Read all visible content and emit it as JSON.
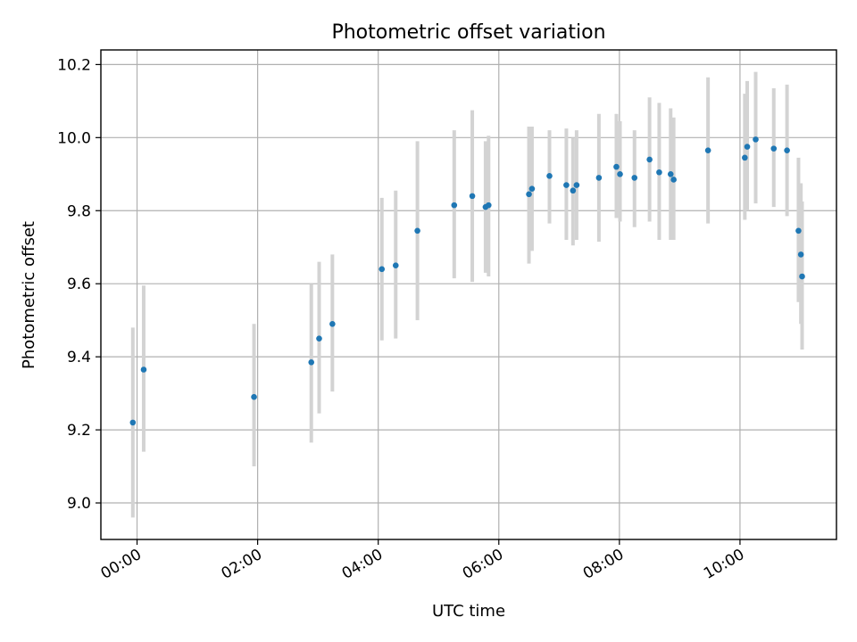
{
  "chart_data": {
    "type": "scatter",
    "title": "Photometric offset variation",
    "xlabel": "UTC time",
    "ylabel": "Photometric offset",
    "x_unit": "hours UTC",
    "xlim": [
      -0.6,
      11.6
    ],
    "ylim": [
      8.9,
      10.24
    ],
    "x_ticks": [
      {
        "value": 0,
        "label": "00:00"
      },
      {
        "value": 2,
        "label": "02:00"
      },
      {
        "value": 4,
        "label": "04:00"
      },
      {
        "value": 6,
        "label": "06:00"
      },
      {
        "value": 8,
        "label": "08:00"
      },
      {
        "value": 10,
        "label": "10:00"
      }
    ],
    "y_ticks": [
      {
        "value": 9.0,
        "label": "9.0"
      },
      {
        "value": 9.2,
        "label": "9.2"
      },
      {
        "value": 9.4,
        "label": "9.4"
      },
      {
        "value": 9.6,
        "label": "9.6"
      },
      {
        "value": 9.8,
        "label": "9.8"
      },
      {
        "value": 10.0,
        "label": "10.0"
      },
      {
        "value": 10.2,
        "label": "10.2"
      }
    ],
    "grid": true,
    "colors": {
      "point": "#1f77b4",
      "errorbar": "#d3d3d3"
    },
    "points": [
      {
        "x": -0.07,
        "y": 9.22,
        "lo": 8.96,
        "hi": 9.48
      },
      {
        "x": 0.11,
        "y": 9.365,
        "lo": 9.14,
        "hi": 9.595
      },
      {
        "x": 1.94,
        "y": 9.29,
        "lo": 9.1,
        "hi": 9.49
      },
      {
        "x": 2.89,
        "y": 9.385,
        "lo": 9.165,
        "hi": 9.6
      },
      {
        "x": 3.02,
        "y": 9.45,
        "lo": 9.245,
        "hi": 9.66
      },
      {
        "x": 3.24,
        "y": 9.49,
        "lo": 9.305,
        "hi": 9.68
      },
      {
        "x": 4.06,
        "y": 9.64,
        "lo": 9.445,
        "hi": 9.835
      },
      {
        "x": 4.29,
        "y": 9.65,
        "lo": 9.45,
        "hi": 9.855
      },
      {
        "x": 4.65,
        "y": 9.745,
        "lo": 9.5,
        "hi": 9.99
      },
      {
        "x": 5.26,
        "y": 9.815,
        "lo": 9.615,
        "hi": 10.02
      },
      {
        "x": 5.56,
        "y": 9.84,
        "lo": 9.605,
        "hi": 10.075
      },
      {
        "x": 5.78,
        "y": 9.81,
        "lo": 9.63,
        "hi": 9.99
      },
      {
        "x": 5.83,
        "y": 9.815,
        "lo": 9.62,
        "hi": 10.005
      },
      {
        "x": 6.5,
        "y": 9.845,
        "lo": 9.655,
        "hi": 10.03
      },
      {
        "x": 6.55,
        "y": 9.86,
        "lo": 9.69,
        "hi": 10.03
      },
      {
        "x": 6.84,
        "y": 9.895,
        "lo": 9.765,
        "hi": 10.02
      },
      {
        "x": 7.12,
        "y": 9.87,
        "lo": 9.72,
        "hi": 10.025
      },
      {
        "x": 7.23,
        "y": 9.855,
        "lo": 9.705,
        "hi": 10.0
      },
      {
        "x": 7.29,
        "y": 9.87,
        "lo": 9.72,
        "hi": 10.02
      },
      {
        "x": 7.66,
        "y": 9.89,
        "lo": 9.715,
        "hi": 10.065
      },
      {
        "x": 7.95,
        "y": 9.92,
        "lo": 9.78,
        "hi": 10.065
      },
      {
        "x": 8.01,
        "y": 9.9,
        "lo": 9.77,
        "hi": 10.045
      },
      {
        "x": 8.25,
        "y": 9.89,
        "lo": 9.755,
        "hi": 10.02
      },
      {
        "x": 8.5,
        "y": 9.94,
        "lo": 9.77,
        "hi": 10.11
      },
      {
        "x": 8.66,
        "y": 9.905,
        "lo": 9.72,
        "hi": 10.095
      },
      {
        "x": 8.85,
        "y": 9.9,
        "lo": 9.72,
        "hi": 10.08
      },
      {
        "x": 8.9,
        "y": 9.885,
        "lo": 9.72,
        "hi": 10.055
      },
      {
        "x": 9.47,
        "y": 9.965,
        "lo": 9.765,
        "hi": 10.165
      },
      {
        "x": 10.08,
        "y": 9.945,
        "lo": 9.775,
        "hi": 10.12
      },
      {
        "x": 10.12,
        "y": 9.975,
        "lo": 9.8,
        "hi": 10.155
      },
      {
        "x": 10.26,
        "y": 9.995,
        "lo": 9.82,
        "hi": 10.18
      },
      {
        "x": 10.56,
        "y": 9.97,
        "lo": 9.81,
        "hi": 10.135
      },
      {
        "x": 10.78,
        "y": 9.965,
        "lo": 9.785,
        "hi": 10.145
      },
      {
        "x": 10.97,
        "y": 9.745,
        "lo": 9.55,
        "hi": 9.945
      },
      {
        "x": 11.01,
        "y": 9.68,
        "lo": 9.49,
        "hi": 9.875
      },
      {
        "x": 11.03,
        "y": 9.62,
        "lo": 9.42,
        "hi": 9.825
      }
    ]
  }
}
